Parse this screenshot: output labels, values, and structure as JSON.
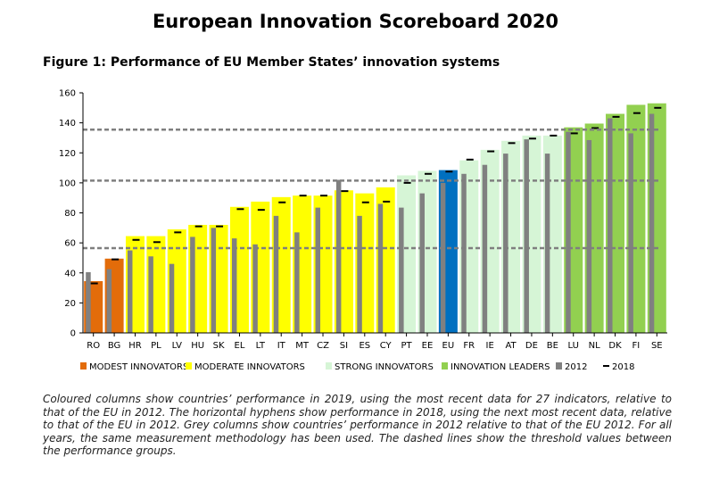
{
  "title": "European Innovation Scoreboard 2020",
  "subtitle": "Figure 1: Performance of EU Member States’ innovation systems",
  "caption": "Coloured columns show countries’ performance in 2019, using the most recent data for 27 indicators, relative to that of the EU in 2012. The horizontal hyphens show performance in 2018, using the next most recent data, relative to that of the EU in 2012. Grey columns show countries’ performance in 2012 relative to that of the EU 2012. For all years, the same measurement methodology has been used. The dashed lines show the threshold values between the performance groups.",
  "chart_data": {
    "type": "bar",
    "ylim": [
      0,
      160
    ],
    "yticks": [
      0,
      20,
      40,
      60,
      80,
      100,
      120,
      140,
      160
    ],
    "thresholds": [
      56.5,
      101.5,
      135.5
    ],
    "categories": [
      "RO",
      "BG",
      "HR",
      "PL",
      "LV",
      "HU",
      "SK",
      "EL",
      "LT",
      "IT",
      "MT",
      "CZ",
      "SI",
      "ES",
      "CY",
      "PT",
      "EE",
      "EU",
      "FR",
      "IE",
      "AT",
      "DE",
      "BE",
      "LU",
      "NL",
      "DK",
      "FI",
      "SE"
    ],
    "groups": [
      "modest",
      "modest",
      "moderate",
      "moderate",
      "moderate",
      "moderate",
      "moderate",
      "moderate",
      "moderate",
      "moderate",
      "moderate",
      "moderate",
      "moderate",
      "moderate",
      "moderate",
      "strong",
      "strong",
      "eu",
      "strong",
      "strong",
      "strong",
      "strong",
      "strong",
      "leader",
      "leader",
      "leader",
      "leader",
      "leader"
    ],
    "series": [
      {
        "name": "2019",
        "values": [
          34.5,
          49.5,
          64.5,
          64.5,
          69.0,
          72.0,
          72.0,
          84.0,
          87.5,
          90.5,
          91.5,
          91.5,
          95.0,
          93.0,
          97.0,
          105.0,
          108.0,
          108.5,
          115.0,
          122.0,
          128.0,
          131.5,
          131.5,
          137.0,
          139.5,
          146.0,
          152.0,
          153.0
        ]
      },
      {
        "name": "2012",
        "values": [
          40.5,
          42.5,
          55.0,
          51.0,
          46.0,
          64.0,
          70.0,
          63.0,
          59.0,
          78.0,
          67.0,
          83.5,
          102.0,
          78.0,
          86.0,
          83.5,
          93.0,
          100.0,
          106.0,
          112.0,
          119.5,
          129.0,
          119.5,
          134.0,
          128.5,
          143.0,
          133.0,
          146.0
        ]
      },
      {
        "name": "2018",
        "values": [
          33.0,
          49.0,
          62.0,
          60.5,
          67.0,
          71.0,
          71.0,
          82.5,
          82.0,
          87.0,
          91.5,
          91.5,
          94.5,
          87.0,
          87.5,
          100.0,
          106.0,
          107.5,
          115.5,
          121.0,
          126.5,
          129.5,
          131.5,
          133.0,
          136.5,
          144.0,
          146.5,
          150.0
        ]
      }
    ],
    "legend": [
      {
        "key": "modest",
        "label": "MODEST INNOVATORS"
      },
      {
        "key": "moderate",
        "label": "MODERATE INNOVATORS"
      },
      {
        "key": "strong",
        "label": "STRONG INNOVATORS"
      },
      {
        "key": "leader",
        "label": "INNOVATION LEADERS"
      },
      {
        "key": "grey2012",
        "label": "2012"
      },
      {
        "key": "hyphen2018",
        "label": "2018"
      }
    ],
    "colors": {
      "modest": "#e36c0a",
      "moderate": "#ffff00",
      "strong": "#d6f5d6",
      "leader": "#92d050",
      "eu": "#0070c0",
      "grey2012": "#808080",
      "hyphen2018": "#000000",
      "threshold": "#7f7f7f"
    }
  }
}
